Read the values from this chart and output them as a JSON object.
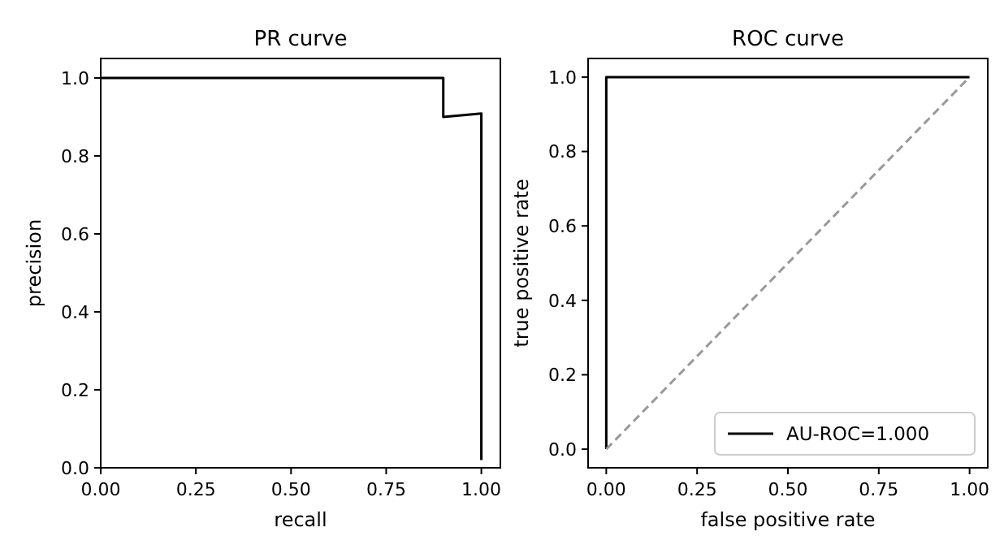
{
  "chart_data": [
    {
      "type": "line",
      "title": "PR curve",
      "xlabel": "recall",
      "ylabel": "precision",
      "xlim": [
        0,
        1.05
      ],
      "ylim": [
        0,
        1.05
      ],
      "xticks": [
        {
          "value": 0,
          "label": "0.00"
        },
        {
          "value": 0.25,
          "label": "0.25"
        },
        {
          "value": 0.5,
          "label": "0.50"
        },
        {
          "value": 0.75,
          "label": "0.75"
        },
        {
          "value": 1,
          "label": "1.00"
        }
      ],
      "yticks": [
        {
          "value": 0,
          "label": "0.0"
        },
        {
          "value": 0.2,
          "label": "0.2"
        },
        {
          "value": 0.4,
          "label": "0.4"
        },
        {
          "value": 0.6,
          "label": "0.6"
        },
        {
          "value": 0.8,
          "label": "0.8"
        },
        {
          "value": 1,
          "label": "1.0"
        }
      ],
      "grid": false,
      "legend": false,
      "series": [
        {
          "color": "#000000",
          "line_style": "solid",
          "x": [
            0,
            0.9,
            0.9,
            1,
            1
          ],
          "values": [
            1,
            1,
            0.9,
            0.909,
            0.02
          ]
        }
      ]
    },
    {
      "type": "line",
      "title": "ROC curve",
      "xlabel": "false positive rate",
      "ylabel": "true positive rate",
      "xlim": [
        -0.05,
        1.05
      ],
      "ylim": [
        -0.05,
        1.05
      ],
      "xticks": [
        {
          "value": 0,
          "label": "0.00"
        },
        {
          "value": 0.25,
          "label": "0.25"
        },
        {
          "value": 0.5,
          "label": "0.50"
        },
        {
          "value": 0.75,
          "label": "0.75"
        },
        {
          "value": 1,
          "label": "1.00"
        }
      ],
      "yticks": [
        {
          "value": 0,
          "label": "0.0"
        },
        {
          "value": 0.2,
          "label": "0.2"
        },
        {
          "value": 0.4,
          "label": "0.4"
        },
        {
          "value": 0.6,
          "label": "0.6"
        },
        {
          "value": 0.8,
          "label": "0.8"
        },
        {
          "value": 1,
          "label": "1.0"
        }
      ],
      "grid": false,
      "legend": "bottom right",
      "series": [
        {
          "name": "AU-ROC=1.000",
          "color": "#000000",
          "line_style": "solid",
          "x": [
            0,
            0,
            1
          ],
          "values": [
            0,
            1,
            1
          ]
        },
        {
          "color": "#999999",
          "line_style": "dashed",
          "x": [
            0,
            1
          ],
          "values": [
            0,
            1
          ]
        }
      ]
    }
  ]
}
